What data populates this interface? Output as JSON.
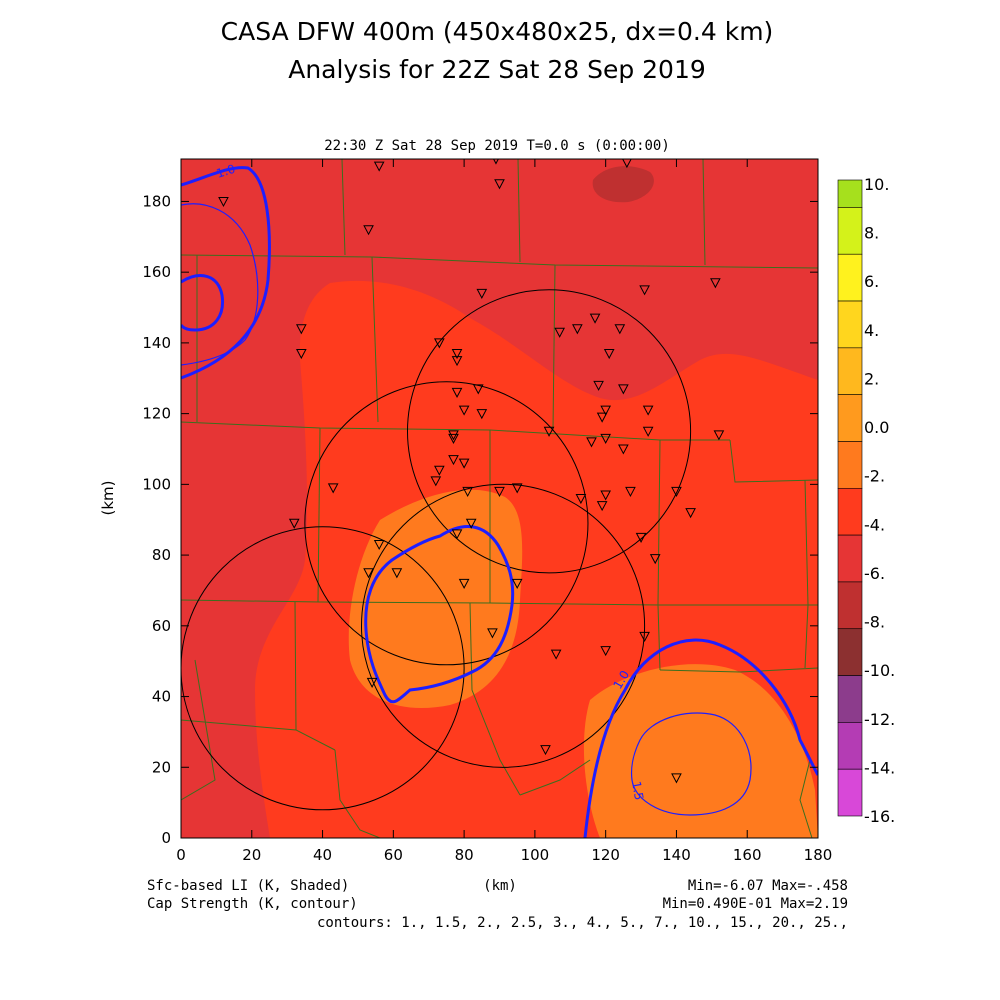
{
  "header": {
    "title_line1": "CASA DFW 400m (450x480x25, dx=0.4 km)",
    "title_line2": "Analysis for 22Z Sat 28 Sep 2019",
    "subtitle": "22:30 Z Sat 28 Sep 2019    T=0.0 s (0:00:00)"
  },
  "footer": {
    "field1": "Sfc-based LI (K, Shaded)",
    "field2": "Cap Strength (K, contour)",
    "xunit": "(km)",
    "range1": "Min=-6.07 Max=-.458",
    "range2": "Min=0.490E-01 Max=2.19",
    "contours": "contours: 1., 1.5, 2., 2.5, 3., 4., 5., 7., 10., 15., 20., 25.,"
  },
  "chart_data": {
    "type": "heatmap",
    "xlabel": "",
    "ylabel": "(km)",
    "xlim": [
      0,
      180
    ],
    "ylim": [
      0,
      192
    ],
    "xticks": [
      "0",
      "20",
      "40",
      "60",
      "80",
      "100",
      "120",
      "140",
      "160",
      "180"
    ],
    "yticks": [
      "0",
      "20",
      "40",
      "60",
      "80",
      "100",
      "120",
      "140",
      "160",
      "180"
    ],
    "colorbar": {
      "labels": [
        "10.",
        "8.",
        "6.",
        "4.",
        "2.",
        "0.0",
        "-2.",
        "-4.",
        "-6.",
        "-8.",
        "-10.",
        "-12.",
        "-14.",
        "-16."
      ],
      "colors": [
        "#a6e01d",
        "#d4f21a",
        "#fff21e",
        "#ffd61e",
        "#ffb81e",
        "#ff9a1e",
        "#ff7a1e",
        "#ff3b1e",
        "#e63535",
        "#bf3030",
        "#8c3030",
        "#8c3c8c",
        "#b43cb4",
        "#d848d8"
      ]
    },
    "contour_labels": [
      "1.0",
      "1.0",
      "1.5"
    ],
    "radar_circles_km": [
      {
        "x": 40,
        "y": 48,
        "r": 40
      },
      {
        "x": 75,
        "y": 89,
        "r": 40
      },
      {
        "x": 104,
        "y": 115,
        "r": 40
      },
      {
        "x": 91,
        "y": 60,
        "r": 40
      }
    ],
    "stations_km": [
      [
        56,
        190
      ],
      [
        89,
        192
      ],
      [
        90,
        185
      ],
      [
        126,
        191
      ],
      [
        12,
        180
      ],
      [
        53,
        172
      ],
      [
        34,
        144
      ],
      [
        34,
        137
      ],
      [
        85,
        154
      ],
      [
        131,
        155
      ],
      [
        151,
        157
      ],
      [
        107,
        143
      ],
      [
        112,
        144
      ],
      [
        117,
        147
      ],
      [
        124,
        144
      ],
      [
        121,
        137
      ],
      [
        73,
        140
      ],
      [
        78,
        137
      ],
      [
        78,
        135
      ],
      [
        118,
        128
      ],
      [
        125,
        127
      ],
      [
        84,
        127
      ],
      [
        78,
        126
      ],
      [
        80,
        121
      ],
      [
        85,
        120
      ],
      [
        120,
        121
      ],
      [
        119,
        119
      ],
      [
        132,
        121
      ],
      [
        77,
        114
      ],
      [
        77,
        113
      ],
      [
        104,
        115
      ],
      [
        116,
        112
      ],
      [
        120,
        113
      ],
      [
        125,
        110
      ],
      [
        132,
        115
      ],
      [
        152,
        114
      ],
      [
        77,
        107
      ],
      [
        80,
        106
      ],
      [
        73,
        104
      ],
      [
        72,
        101
      ],
      [
        43,
        99
      ],
      [
        81,
        98
      ],
      [
        90,
        98
      ],
      [
        95,
        99
      ],
      [
        113,
        96
      ],
      [
        120,
        97
      ],
      [
        127,
        98
      ],
      [
        140,
        98
      ],
      [
        119,
        94
      ],
      [
        144,
        92
      ],
      [
        32,
        89
      ],
      [
        82,
        89
      ],
      [
        78,
        86
      ],
      [
        130,
        85
      ],
      [
        56,
        83
      ],
      [
        134,
        79
      ],
      [
        53,
        75
      ],
      [
        61,
        75
      ],
      [
        80,
        72
      ],
      [
        95,
        72
      ],
      [
        131,
        57
      ],
      [
        88,
        58
      ],
      [
        120,
        53
      ],
      [
        106,
        52
      ],
      [
        54,
        44
      ],
      [
        103,
        25
      ],
      [
        140,
        17
      ]
    ]
  }
}
